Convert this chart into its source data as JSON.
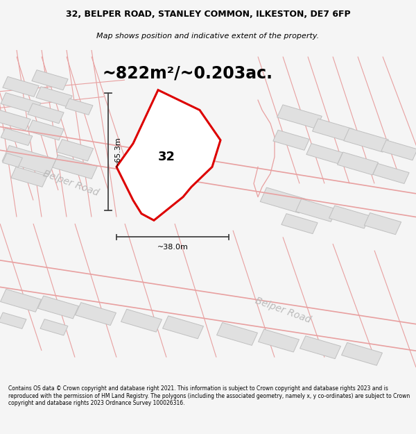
{
  "title_line1": "32, BELPER ROAD, STANLEY COMMON, ILKESTON, DE7 6FP",
  "title_line2": "Map shows position and indicative extent of the property.",
  "area_text": "~822m²/~0.203ac.",
  "label_32": "32",
  "dim_height": "~65.3m",
  "dim_width": "~38.0m",
  "road_label1": "Belper Road",
  "road_label2": "Belper Road",
  "footer_text": "Contains OS data © Crown copyright and database right 2021. This information is subject to Crown copyright and database rights 2023 and is reproduced with the permission of HM Land Registry. The polygons (including the associated geometry, namely x, y co-ordinates) are subject to Crown copyright and database rights 2023 Ordnance Survey 100026316.",
  "bg_color": "#f5f5f5",
  "map_bg": "#f9f9f9",
  "road_outline_color": "#e8a0a0",
  "road_fill_color": "#ffffff",
  "property_color": "#dd0000",
  "property_fill": "#ffffff",
  "building_fill": "#e0e0e0",
  "building_edge": "#c0c0c0",
  "dim_line_color": "#444444",
  "road_label_color": "#bbbbbb",
  "title_fontsize": 9.0,
  "subtitle_fontsize": 8.0,
  "area_fontsize": 17,
  "label_fontsize": 13,
  "dim_fontsize": 8,
  "road_label_fontsize": 10,
  "footer_fontsize": 5.5
}
